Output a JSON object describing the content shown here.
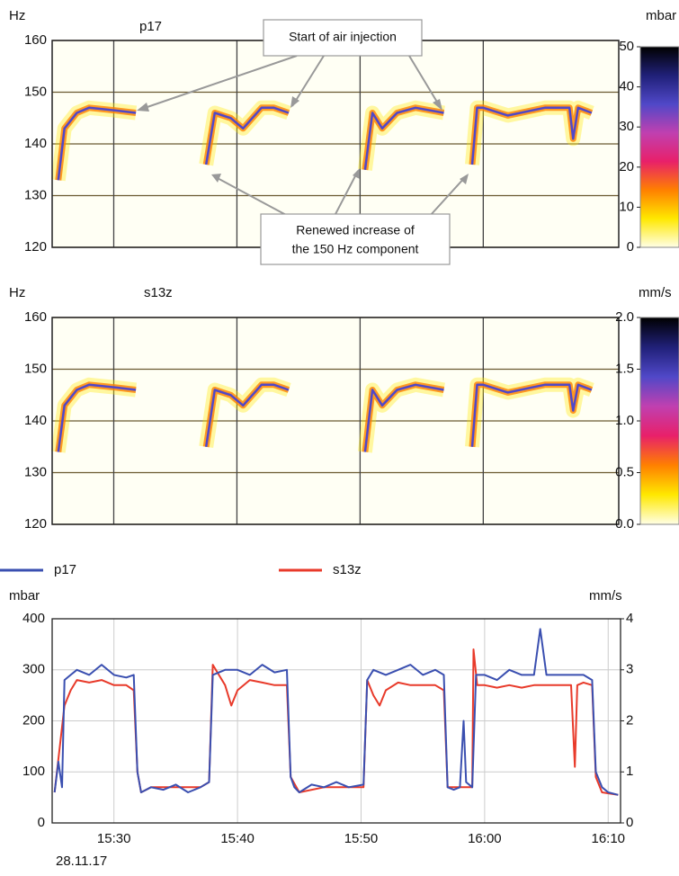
{
  "chart_data": [
    {
      "type": "spectrogram",
      "title": "p17",
      "y_label": "Hz",
      "colorbar_label": "mbar",
      "xlim": [
        925,
        971
      ],
      "xticks": [
        930,
        940,
        950,
        960
      ],
      "ylim": [
        120,
        160
      ],
      "yticks": [
        120,
        130,
        140,
        150,
        160
      ],
      "clim": [
        0,
        50
      ],
      "cticks": [
        0,
        10,
        20,
        30,
        40,
        50
      ],
      "colormap": [
        "#ffffe6",
        "#ffe800",
        "#ff8000",
        "#e8206a",
        "#c040b0",
        "#5048c8",
        "#202078",
        "#000000"
      ],
      "x": [
        925.5,
        926,
        927,
        928,
        930,
        931.8,
        null,
        937.5,
        938.2,
        939.5,
        940.5,
        942,
        943,
        944.2,
        null,
        950.4,
        951,
        951.8,
        953,
        954.5,
        956.8,
        null,
        959.1,
        959.5,
        960,
        962,
        965,
        967,
        967.3,
        967.7,
        968.8
      ],
      "values": [
        133,
        143,
        146,
        147,
        146.5,
        146,
        null,
        136,
        146,
        145,
        143,
        147,
        147,
        146,
        null,
        135,
        146,
        143,
        146,
        147,
        146,
        null,
        136,
        147,
        147,
        145.5,
        147,
        147,
        141,
        147,
        146
      ],
      "annotations": [
        "Start of air injection",
        "Renewed increase of",
        "the 150 Hz component"
      ]
    },
    {
      "type": "spectrogram",
      "title": "s13z",
      "y_label": "Hz",
      "colorbar_label": "mm/s",
      "xlim": [
        925,
        971
      ],
      "xticks": [
        930,
        940,
        950,
        960
      ],
      "ylim": [
        120,
        160
      ],
      "yticks": [
        120,
        130,
        140,
        150,
        160
      ],
      "clim": [
        0,
        2
      ],
      "cticks": [
        {
          "value": 0,
          "label": "0.0"
        },
        {
          "value": 0.5,
          "label": "0.5"
        },
        {
          "value": 1,
          "label": "1.0"
        },
        {
          "value": 1.5,
          "label": "1.5"
        },
        {
          "value": 2,
          "label": "2.0"
        }
      ],
      "colormap": [
        "#ffffe6",
        "#ffe800",
        "#ff8000",
        "#e8206a",
        "#c040b0",
        "#5048c8",
        "#202078",
        "#000000"
      ],
      "x": [
        925.5,
        926,
        927,
        928,
        930,
        931.8,
        null,
        937.5,
        938.2,
        939.5,
        940.5,
        942,
        943,
        944.2,
        null,
        950.4,
        951,
        951.8,
        953,
        954.5,
        956.8,
        null,
        959.1,
        959.5,
        960,
        962,
        965,
        967,
        967.3,
        967.7,
        968.8
      ],
      "values": [
        134,
        143,
        146,
        147,
        146.5,
        146,
        null,
        135,
        146,
        145,
        143,
        147,
        147,
        146,
        null,
        134,
        146,
        143,
        146,
        147,
        146,
        null,
        135,
        147,
        147,
        145.5,
        147,
        147,
        142,
        147,
        146
      ]
    },
    {
      "type": "line",
      "y_label": "mbar",
      "y2_label": "mm/s",
      "date_label": "28.11.17",
      "xlim": [
        925,
        971
      ],
      "xticks": [
        {
          "value": 930,
          "label": "15:30"
        },
        {
          "value": 940,
          "label": "15:40"
        },
        {
          "value": 950,
          "label": "15:50"
        },
        {
          "value": 960,
          "label": "16:00"
        },
        {
          "value": 970,
          "label": "16:10"
        }
      ],
      "ylim": [
        0,
        400
      ],
      "yticks": [
        0,
        100,
        200,
        300,
        400
      ],
      "y2lim": [
        0,
        4
      ],
      "y2ticks": [
        0,
        1,
        2,
        3,
        4
      ],
      "grid": true,
      "series": [
        {
          "name": "p17",
          "color": "#3a4fb0",
          "x": [
            925.2,
            925.5,
            925.8,
            926,
            926.5,
            927,
            928,
            929,
            930,
            931,
            931.6,
            931.9,
            932.2,
            933,
            934,
            935,
            936,
            937,
            937.7,
            938,
            939,
            940,
            941,
            942,
            943,
            944,
            944.3,
            944.6,
            945,
            946,
            947,
            948,
            949,
            950.2,
            950.5,
            951,
            952,
            953,
            954,
            955,
            956,
            956.7,
            957,
            957.5,
            958,
            958.3,
            958.5,
            959,
            959.3,
            960,
            961,
            962,
            963,
            964,
            964.5,
            965,
            966,
            967,
            968,
            968.7,
            969,
            969.5,
            970,
            970.8
          ],
          "values": [
            60,
            120,
            70,
            280,
            290,
            300,
            290,
            310,
            290,
            285,
            290,
            100,
            60,
            70,
            65,
            75,
            60,
            70,
            80,
            290,
            300,
            300,
            290,
            310,
            295,
            300,
            90,
            70,
            60,
            75,
            70,
            80,
            70,
            75,
            280,
            300,
            290,
            300,
            310,
            290,
            300,
            290,
            70,
            65,
            70,
            200,
            80,
            70,
            290,
            290,
            280,
            300,
            290,
            290,
            380,
            290,
            290,
            290,
            290,
            280,
            100,
            70,
            60,
            55
          ]
        },
        {
          "name": "s13z",
          "color": "#e83a2a",
          "axis": "y2",
          "x": [
            925.2,
            926,
            926.5,
            927,
            928,
            929,
            930,
            931,
            931.6,
            931.9,
            932.2,
            933,
            935,
            937,
            937.7,
            938,
            939,
            939.5,
            940,
            941,
            942,
            943,
            944,
            944.3,
            945,
            947,
            949,
            950.2,
            950.5,
            951,
            951.5,
            952,
            953,
            954,
            955,
            956,
            956.7,
            957,
            958,
            959,
            959.1,
            959.4,
            960,
            961,
            962,
            963,
            964,
            965,
            966,
            967,
            967.3,
            967.5,
            968,
            968.7,
            969,
            969.5,
            970.8
          ],
          "values": [
            0.6,
            2.3,
            2.6,
            2.8,
            2.75,
            2.8,
            2.7,
            2.7,
            2.6,
            1.0,
            0.6,
            0.7,
            0.7,
            0.7,
            0.8,
            3.1,
            2.7,
            2.3,
            2.6,
            2.8,
            2.75,
            2.7,
            2.7,
            0.9,
            0.6,
            0.7,
            0.7,
            0.7,
            2.8,
            2.5,
            2.3,
            2.6,
            2.75,
            2.7,
            2.7,
            2.7,
            2.6,
            0.7,
            0.7,
            0.7,
            3.4,
            2.7,
            2.7,
            2.65,
            2.7,
            2.65,
            2.7,
            2.7,
            2.7,
            2.7,
            1.1,
            2.7,
            2.75,
            2.7,
            0.9,
            0.6,
            0.55
          ]
        }
      ]
    }
  ]
}
